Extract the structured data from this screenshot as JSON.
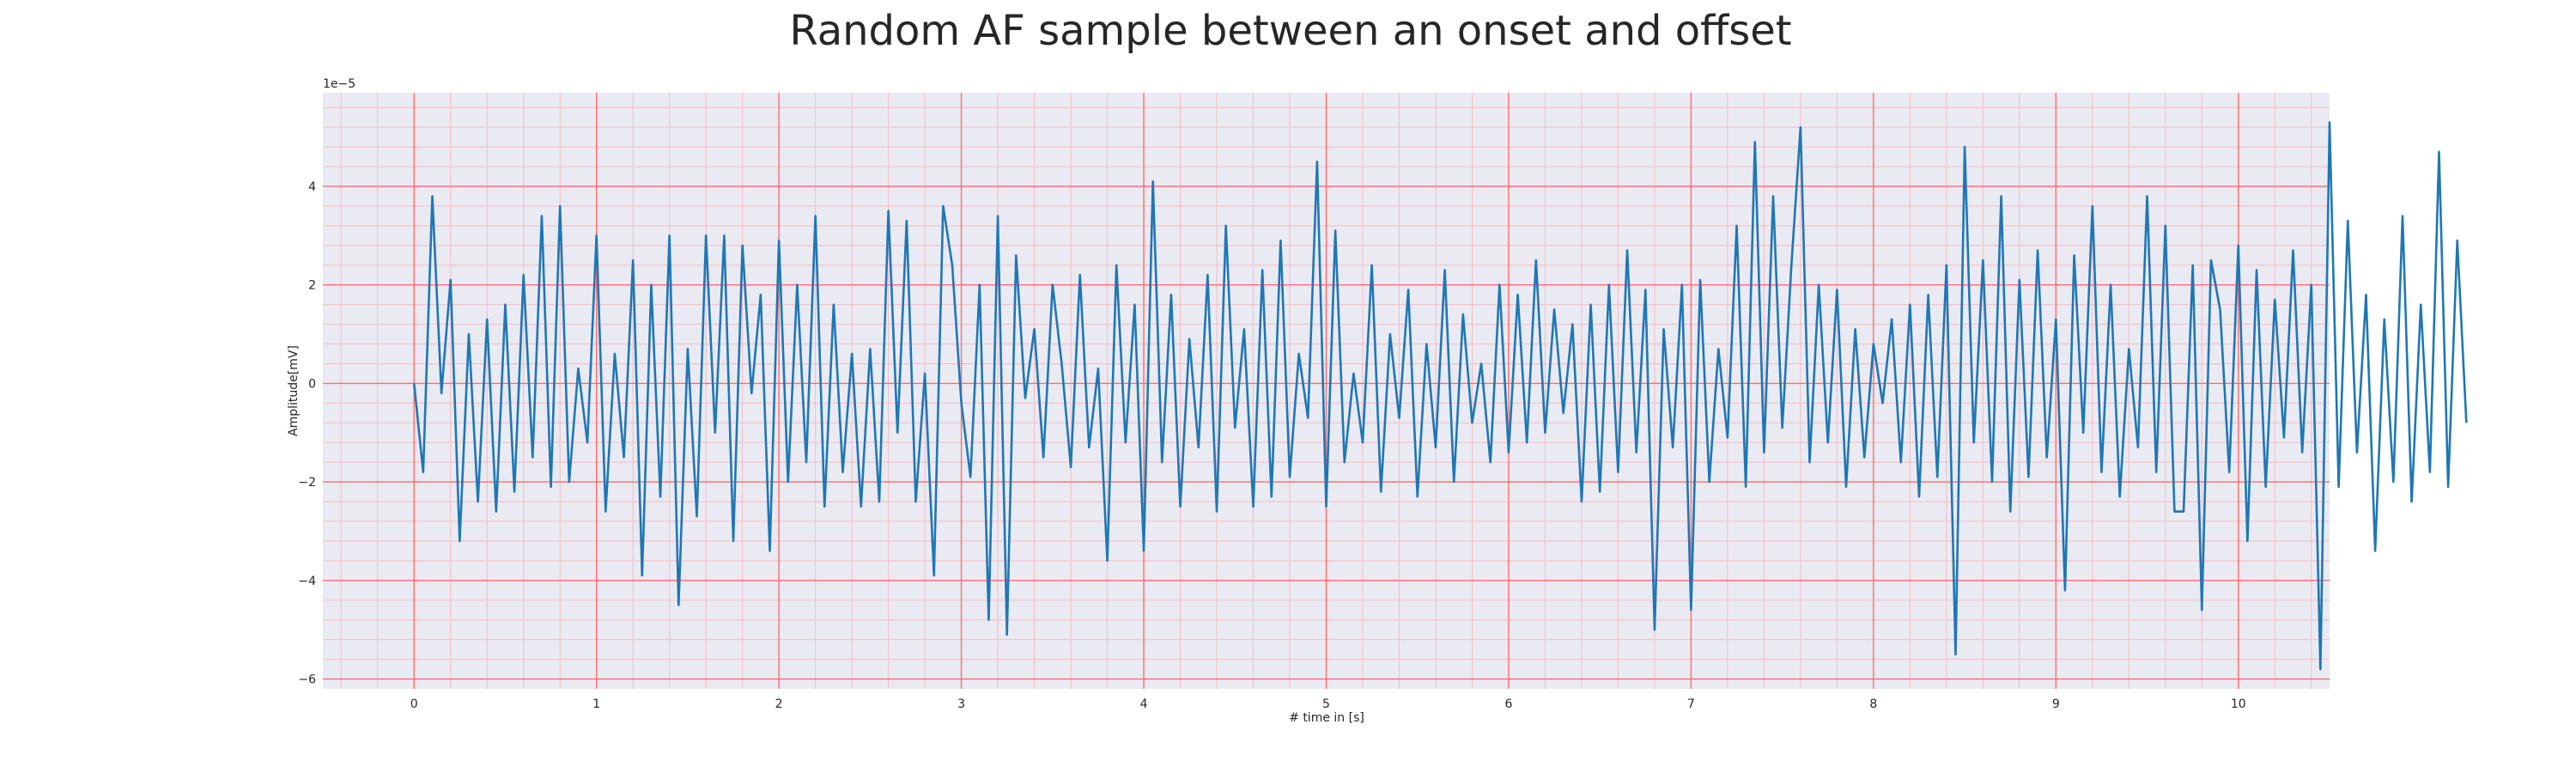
{
  "chart_data": {
    "type": "line",
    "title": "Random AF sample between an onset and offset",
    "xlabel": "# time in [s]",
    "ylabel": "Amplitude[mV]",
    "y_offset_label": "1e−5",
    "xlim": [
      -0.5,
      10.5
    ],
    "ylim": [
      -6.2,
      5.9
    ],
    "x_ticks": [
      0,
      1,
      2,
      3,
      4,
      5,
      6,
      7,
      8,
      9,
      10
    ],
    "x_tick_labels": [
      "0",
      "1",
      "2",
      "3",
      "4",
      "5",
      "6",
      "7",
      "8",
      "9",
      "10"
    ],
    "y_ticks": [
      -6,
      -4,
      -2,
      0,
      2,
      4
    ],
    "y_tick_labels": [
      "−6",
      "−4",
      "−2",
      "0",
      "2",
      "4"
    ],
    "y_scale_exponent": -5,
    "grid": true,
    "minor_grid": true,
    "legend": "none",
    "colors": {
      "line": "#1f77b4",
      "background": "#eaeaf2",
      "major_grid": "#ff6b6b",
      "minor_grid": "#f4bcc4",
      "text": "#262626"
    },
    "series": [
      {
        "x_start": 0,
        "x_step": 0.05,
        "values": [
          0.0,
          -1.8,
          3.8,
          -0.2,
          2.1,
          -3.2,
          1.0,
          -2.4,
          1.3,
          -2.6,
          1.6,
          -2.2,
          2.2,
          -1.5,
          3.4,
          -2.1,
          3.6,
          -2.0,
          0.3,
          -1.2,
          3.0,
          -2.6,
          0.6,
          -1.5,
          2.5,
          -3.9,
          2.0,
          -2.3,
          3.0,
          -4.5,
          0.7,
          -2.7,
          3.0,
          -1.0,
          3.0,
          -3.2,
          2.8,
          -0.2,
          1.8,
          -3.4,
          2.9,
          -2.0,
          2.0,
          -1.6,
          3.4,
          -2.5,
          1.6,
          -1.8,
          0.6,
          -2.5,
          0.7,
          -2.4,
          3.5,
          -1.0,
          3.3,
          -2.4,
          0.2,
          -3.9,
          3.6,
          2.4,
          -0.4,
          -1.9,
          2.0,
          -4.8,
          3.4,
          -5.1,
          2.6,
          -0.3,
          1.1,
          -1.5,
          2.0,
          0.4,
          -1.7,
          2.2,
          -1.3,
          0.3,
          -3.6,
          2.4,
          -1.2,
          1.6,
          -3.4,
          4.1,
          -1.6,
          1.8,
          -2.5,
          0.9,
          -1.3,
          2.2,
          -2.6,
          3.2,
          -0.9,
          1.1,
          -2.5,
          2.3,
          -2.3,
          2.9,
          -1.9,
          0.6,
          -0.7,
          4.5,
          -2.5,
          3.1,
          -1.6,
          0.2,
          -1.2,
          2.4,
          -2.2,
          1.0,
          -0.7,
          1.9,
          -2.3,
          0.8,
          -1.3,
          2.3,
          -2.0,
          1.4,
          -0.8,
          0.4,
          -1.6,
          2.0,
          -1.4,
          1.8,
          -1.2,
          2.5,
          -1.0,
          1.5,
          -0.6,
          1.2,
          -2.4,
          1.6,
          -2.2,
          2.0,
          -1.8,
          2.7,
          -1.4,
          1.9,
          -5.0,
          1.1,
          -1.3,
          2.0,
          -4.6,
          2.1,
          -2.0,
          0.7,
          -1.1,
          3.2,
          -2.1,
          4.9,
          -1.4,
          3.8,
          -0.9,
          2.4,
          5.2,
          -1.6,
          2.0,
          -1.2,
          1.9,
          -2.1,
          1.1,
          -1.5,
          0.8,
          -0.4,
          1.3,
          -1.6,
          1.6,
          -2.3,
          1.8,
          -1.9,
          2.4,
          -5.5,
          4.8,
          -1.2,
          2.5,
          -2.0,
          3.8,
          -2.6,
          2.1,
          -1.9,
          2.7,
          -1.5,
          1.3,
          -4.2,
          2.6,
          -1.0,
          3.6,
          -1.8,
          2.0,
          -2.3,
          0.7,
          -1.3,
          3.8,
          -1.8,
          3.2,
          -2.6,
          -2.6,
          2.4,
          -4.6,
          2.5,
          1.5,
          -1.8,
          2.8,
          -3.2,
          2.3,
          -2.1,
          1.7,
          -1.1,
          2.7,
          -1.4,
          2.0,
          -5.8,
          5.3,
          -2.1,
          3.3,
          -1.4,
          1.8,
          -3.4,
          1.3,
          -2.0,
          3.4,
          -2.4,
          1.6,
          -1.8,
          4.7,
          -2.1,
          2.9,
          -0.8
        ]
      }
    ]
  }
}
